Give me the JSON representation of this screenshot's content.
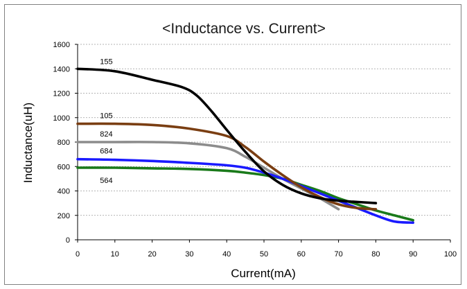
{
  "chart_data": {
    "type": "line",
    "title": "<Inductance vs. Current>",
    "xlabel": "Current(mA)",
    "ylabel": "Inductance(uH)",
    "xlim": [
      0,
      100
    ],
    "ylim": [
      0,
      1600
    ],
    "xticks": [
      "0",
      "10",
      "20",
      "30",
      "40",
      "50",
      "60",
      "70",
      "80",
      "90",
      "100"
    ],
    "yticks": [
      "0",
      "200",
      "400",
      "600",
      "800",
      "1000",
      "1200",
      "1400",
      "1600"
    ],
    "grid": "horizontal dashed",
    "series": [
      {
        "name": "155",
        "color": "#000000",
        "points": [
          [
            0,
            1400
          ],
          [
            10,
            1380
          ],
          [
            20,
            1310
          ],
          [
            28,
            1250
          ],
          [
            32,
            1180
          ],
          [
            36,
            1050
          ],
          [
            40,
            900
          ],
          [
            45,
            720
          ],
          [
            50,
            560
          ],
          [
            55,
            450
          ],
          [
            60,
            380
          ],
          [
            65,
            340
          ],
          [
            70,
            320
          ],
          [
            75,
            310
          ],
          [
            80,
            300
          ]
        ]
      },
      {
        "name": "105",
        "color": "#7a3e12",
        "points": [
          [
            0,
            950
          ],
          [
            10,
            950
          ],
          [
            20,
            940
          ],
          [
            30,
            910
          ],
          [
            40,
            850
          ],
          [
            45,
            760
          ],
          [
            50,
            640
          ],
          [
            55,
            530
          ],
          [
            60,
            430
          ],
          [
            65,
            350
          ],
          [
            70,
            290
          ],
          [
            75,
            260
          ],
          [
            80,
            250
          ]
        ]
      },
      {
        "name": "824",
        "color": "#8c8c8c",
        "points": [
          [
            0,
            800
          ],
          [
            10,
            800
          ],
          [
            20,
            800
          ],
          [
            30,
            790
          ],
          [
            40,
            750
          ],
          [
            45,
            680
          ],
          [
            50,
            590
          ],
          [
            55,
            500
          ],
          [
            60,
            420
          ],
          [
            65,
            340
          ],
          [
            70,
            250
          ]
        ]
      },
      {
        "name": "684",
        "color": "#1a1aff",
        "points": [
          [
            0,
            660
          ],
          [
            10,
            655
          ],
          [
            20,
            645
          ],
          [
            30,
            630
          ],
          [
            40,
            610
          ],
          [
            45,
            590
          ],
          [
            50,
            550
          ],
          [
            55,
            500
          ],
          [
            60,
            440
          ],
          [
            65,
            380
          ],
          [
            70,
            320
          ],
          [
            75,
            260
          ],
          [
            80,
            200
          ],
          [
            85,
            150
          ],
          [
            90,
            140
          ]
        ]
      },
      {
        "name": "564",
        "color": "#1a7a1a",
        "points": [
          [
            0,
            590
          ],
          [
            10,
            590
          ],
          [
            20,
            585
          ],
          [
            30,
            580
          ],
          [
            40,
            565
          ],
          [
            45,
            550
          ],
          [
            50,
            530
          ],
          [
            55,
            500
          ],
          [
            60,
            450
          ],
          [
            65,
            400
          ],
          [
            70,
            340
          ],
          [
            75,
            290
          ],
          [
            80,
            240
          ],
          [
            85,
            200
          ],
          [
            90,
            160
          ]
        ]
      }
    ]
  }
}
